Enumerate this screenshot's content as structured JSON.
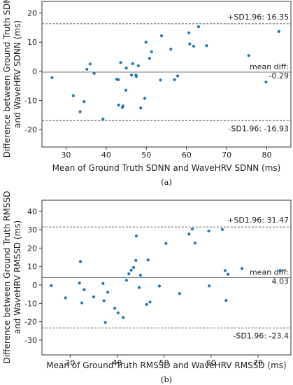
{
  "chart_data": [
    {
      "type": "scatter",
      "panel_label": "(a)",
      "xlabel": "Mean of Ground Truth SDNN and WaveHRV SDNN (ms)",
      "ylabel_lines": [
        "Difference between Ground Truth SDNN",
        "and WaveHRV SDNN (ms)"
      ],
      "xlim": [
        24,
        86
      ],
      "ylim": [
        -26,
        24
      ],
      "xticks": [
        30,
        40,
        50,
        60,
        70,
        80
      ],
      "yticks": [
        -20,
        -10,
        0,
        10,
        20
      ],
      "point_color": "#1f77b4",
      "reference_lines": [
        {
          "kind": "upper",
          "y": 16.35,
          "label": "+SD1.96: 16.35",
          "style": "dashed"
        },
        {
          "kind": "mean",
          "y": -0.29,
          "label_lines": [
            "mean diff:",
            "-0.29"
          ],
          "style": "solid"
        },
        {
          "kind": "lower",
          "y": -16.93,
          "label": "-SD1.96: -16.93",
          "style": "dashed"
        }
      ],
      "points": [
        [
          26.5,
          -2.2
        ],
        [
          31.8,
          -8.4
        ],
        [
          33.5,
          -13.9
        ],
        [
          34.5,
          -10.4
        ],
        [
          35.2,
          0.7
        ],
        [
          36.0,
          2.5
        ],
        [
          37.0,
          -0.7
        ],
        [
          39.2,
          -16.4
        ],
        [
          42.6,
          -2.7
        ],
        [
          43.0,
          -2.9
        ],
        [
          43.1,
          -11.6
        ],
        [
          43.6,
          3.0
        ],
        [
          44.0,
          -12.4
        ],
        [
          44.2,
          -11.9
        ],
        [
          44.9,
          -6.5
        ],
        [
          45.0,
          1.1
        ],
        [
          46.3,
          -1.3
        ],
        [
          46.6,
          2.6
        ],
        [
          47.4,
          -1.3
        ],
        [
          47.5,
          -1.8
        ],
        [
          48.0,
          1.9
        ],
        [
          48.6,
          -12.6
        ],
        [
          49.6,
          -9.3
        ],
        [
          49.9,
          10.0
        ],
        [
          50.8,
          4.4
        ],
        [
          51.3,
          6.7
        ],
        [
          53.5,
          -3.0
        ],
        [
          53.8,
          12.2
        ],
        [
          56.1,
          7.6
        ],
        [
          57.0,
          -2.9
        ],
        [
          57.8,
          -1.6
        ],
        [
          60.6,
          13.2
        ],
        [
          60.8,
          9.4
        ],
        [
          61.8,
          8.6
        ],
        [
          63.0,
          15.3
        ],
        [
          65.0,
          8.8
        ],
        [
          75.5,
          5.4
        ],
        [
          79.8,
          -3.7
        ],
        [
          83.0,
          13.7
        ]
      ]
    },
    {
      "type": "scatter",
      "panel_label": "(b)",
      "xlabel": "Mean of Ground Truth RMSSD and WaveHRV RMSSD (ms)",
      "ylabel_lines": [
        "Difference between Ground Truth RMSSD",
        "and WaveHRV RMSSD (ms)"
      ],
      "xlim": [
        24,
        77
      ],
      "ylim": [
        -38,
        46
      ],
      "xticks": [
        30,
        40,
        50,
        60,
        70
      ],
      "yticks": [
        -30,
        -20,
        -10,
        0,
        10,
        20,
        30,
        40
      ],
      "point_color": "#1f77b4",
      "reference_lines": [
        {
          "kind": "upper",
          "y": 31.47,
          "label": "+SD1.96: 31.47",
          "style": "dashed"
        },
        {
          "kind": "mean",
          "y": 4.03,
          "label_lines": [
            "mean diff:",
            "4.03"
          ],
          "style": "solid"
        },
        {
          "kind": "lower",
          "y": -23.4,
          "label": "-SD1.96: -23.4",
          "style": "dashed"
        }
      ],
      "points": [
        [
          26.0,
          -0.4
        ],
        [
          29.0,
          -7.0
        ],
        [
          32.0,
          1.0
        ],
        [
          32.2,
          12.6
        ],
        [
          32.5,
          -9.8
        ],
        [
          33.0,
          -2.6
        ],
        [
          35.0,
          -6.5
        ],
        [
          37.0,
          0.8
        ],
        [
          37.2,
          -8.6
        ],
        [
          37.5,
          -20.4
        ],
        [
          38.0,
          -4.0
        ],
        [
          39.5,
          -12.7
        ],
        [
          40.2,
          -15.2
        ],
        [
          41.3,
          -17.7
        ],
        [
          42.0,
          2.5
        ],
        [
          42.5,
          6.0
        ],
        [
          43.0,
          8.0
        ],
        [
          43.5,
          9.5
        ],
        [
          44.0,
          13.3
        ],
        [
          44.1,
          26.6
        ],
        [
          44.7,
          -1.4
        ],
        [
          45.0,
          5.3
        ],
        [
          46.3,
          -10.6
        ],
        [
          46.6,
          13.6
        ],
        [
          47.0,
          -9.3
        ],
        [
          49.0,
          -0.6
        ],
        [
          50.4,
          22.5
        ],
        [
          53.3,
          -4.7
        ],
        [
          55.3,
          27.6
        ],
        [
          56.0,
          30.3
        ],
        [
          56.6,
          22.7
        ],
        [
          59.5,
          29.3
        ],
        [
          59.6,
          -0.5
        ],
        [
          62.4,
          30.1
        ],
        [
          63.0,
          7.8
        ],
        [
          63.2,
          -8.4
        ],
        [
          63.6,
          5.8
        ],
        [
          66.6,
          8.9
        ],
        [
          74.7,
          7.7
        ]
      ]
    }
  ]
}
